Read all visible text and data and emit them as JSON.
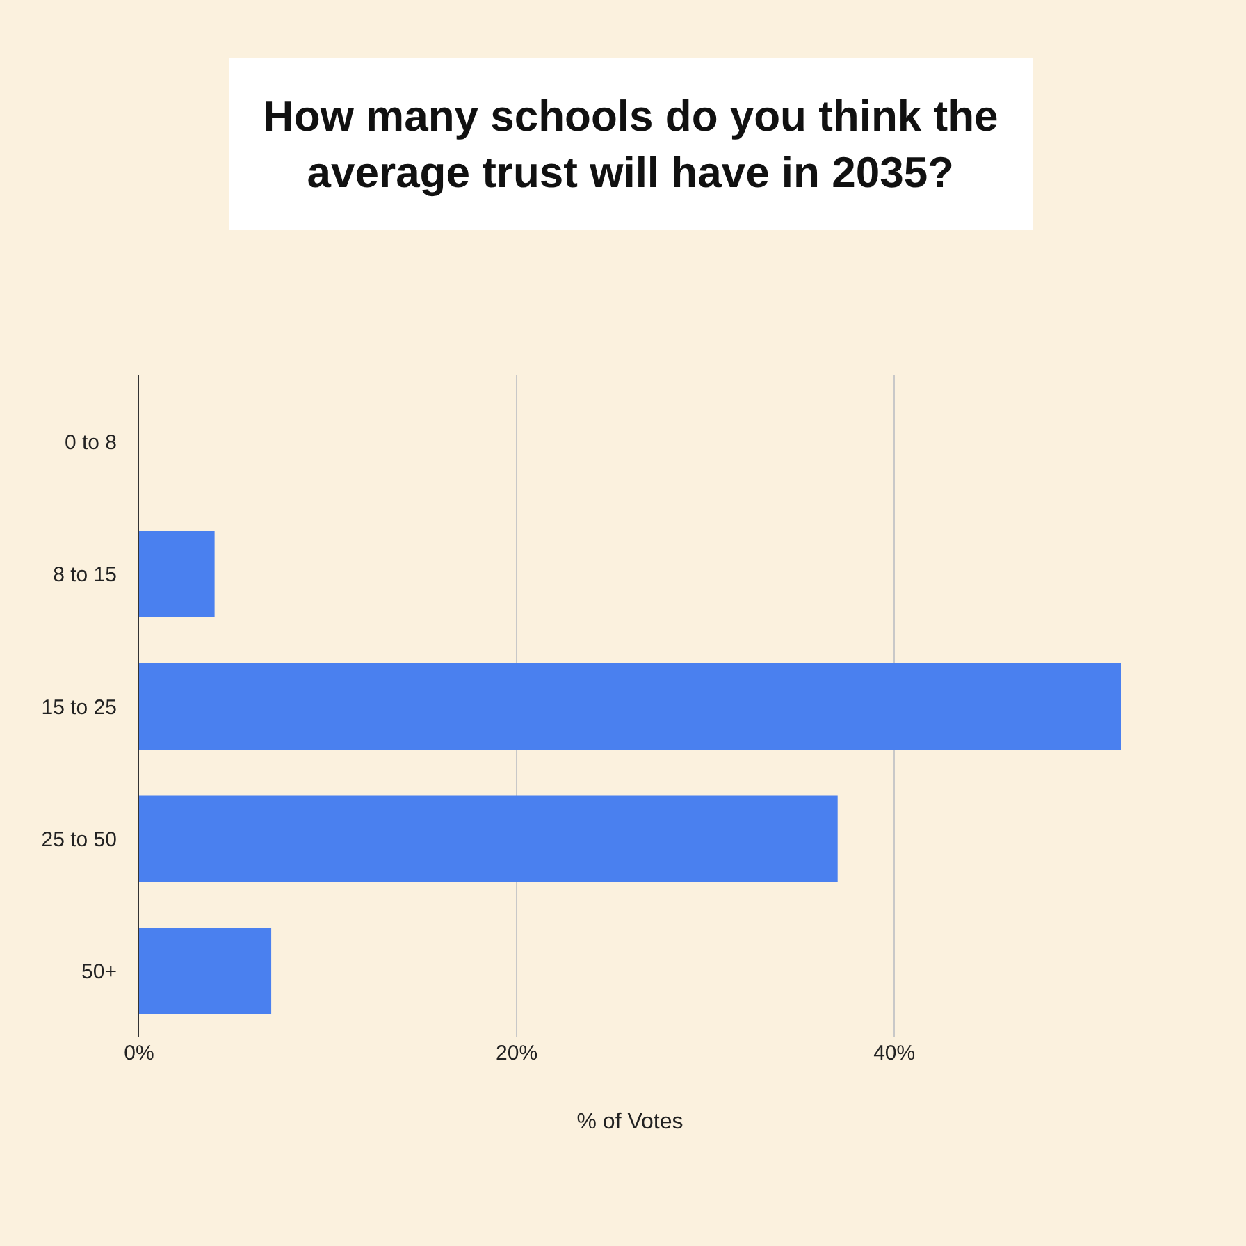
{
  "chart_data": {
    "type": "bar",
    "orientation": "horizontal",
    "title": "How many schools do you think the average trust will have in 2035?",
    "xlabel": "% of Votes",
    "categories": [
      "0 to 8",
      "8 to 15",
      "15 to 25",
      "25 to 50",
      "50+"
    ],
    "values": [
      0,
      4,
      52,
      37,
      7
    ],
    "color": "#4a80ef",
    "xticks": [
      {
        "value": 0,
        "label": "0%"
      },
      {
        "value": 20,
        "label": "20%"
      },
      {
        "value": 40,
        "label": "40%"
      }
    ],
    "xlim": [
      0,
      52
    ],
    "grid": "x"
  }
}
